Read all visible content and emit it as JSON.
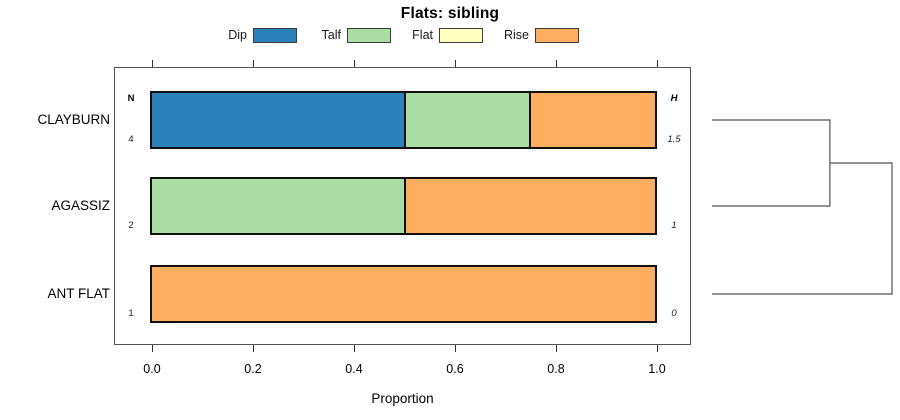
{
  "title": "Flats: sibling",
  "legend": {
    "items": [
      {
        "label": "Dip",
        "color": "#2b82ba"
      },
      {
        "label": "Talf",
        "color": "#abdda4"
      },
      {
        "label": "Flat",
        "color": "#ffffbf"
      },
      {
        "label": "Rise",
        "color": "#fdae61"
      }
    ]
  },
  "columns": {
    "n_header": "N",
    "h_header": "H"
  },
  "axis": {
    "label": "Proportion",
    "tick_labels": [
      "0.0",
      "0.2",
      "0.4",
      "0.6",
      "0.8",
      "1.0"
    ],
    "tick_values": [
      0,
      0.2,
      0.4,
      0.6,
      0.8,
      1.0
    ]
  },
  "chart_data": {
    "type": "bar",
    "subtype": "horizontal-stacked",
    "title": "Flats: sibling",
    "xlabel": "Proportion",
    "xlim": [
      0,
      1
    ],
    "grid": false,
    "legend_position": "top",
    "categories": [
      "CLAYBURN",
      "AGASSIZ",
      "ANT FLAT"
    ],
    "series": [
      {
        "name": "Dip",
        "color": "#2b82ba",
        "values": [
          0.5,
          0,
          0
        ]
      },
      {
        "name": "Talf",
        "color": "#abdda4",
        "values": [
          0.25,
          0.5,
          0
        ]
      },
      {
        "name": "Flat",
        "color": "#ffffbf",
        "values": [
          0,
          0,
          0
        ]
      },
      {
        "name": "Rise",
        "color": "#fdae61",
        "values": [
          0.25,
          0.5,
          1.0
        ]
      }
    ],
    "rows": [
      {
        "label": "CLAYBURN",
        "n": "4",
        "h": "1.5"
      },
      {
        "label": "AGASSIZ",
        "n": "2",
        "h": "1"
      },
      {
        "label": "ANT FLAT",
        "n": "1",
        "h": "0"
      }
    ],
    "dendrogram": {
      "structure": "((CLAYBURN,AGASSIZ),ANT FLAT)",
      "relative_heights": [
        0.655,
        1.0
      ]
    }
  }
}
